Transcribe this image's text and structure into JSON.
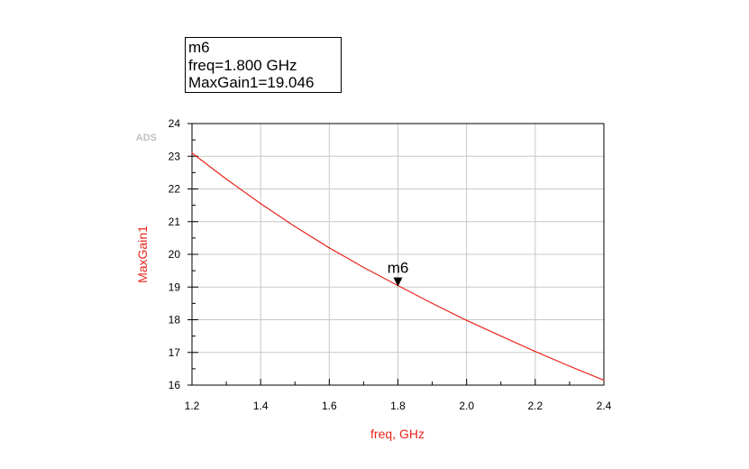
{
  "marker_readout": {
    "name": "m6",
    "line1": "freq=1.800 GHz",
    "line2": "MaxGain1=19.046"
  },
  "watermark": "ADS",
  "colors": {
    "trace": "#e8251c",
    "axis_label": "#e8251c",
    "grid": "#c8c8c8",
    "axis": "#000000"
  },
  "chart_data": {
    "type": "line",
    "xlabel": "freq, GHz",
    "ylabel": "MaxGain1",
    "xlim": [
      1.2,
      2.4
    ],
    "ylim": [
      16,
      24
    ],
    "x_ticks": [
      "1.2",
      "1.4",
      "1.6",
      "1.8",
      "2.0",
      "2.2",
      "2.4"
    ],
    "y_ticks": [
      "16",
      "17",
      "18",
      "19",
      "20",
      "21",
      "22",
      "23",
      "24"
    ],
    "grid": true,
    "series": [
      {
        "x": [
          1.2,
          1.3,
          1.4,
          1.5,
          1.6,
          1.7,
          1.8,
          1.9,
          2.0,
          2.1,
          2.2,
          2.3,
          2.4
        ],
        "values": [
          23.1,
          22.3,
          21.55,
          20.85,
          20.2,
          19.6,
          19.046,
          18.5,
          17.98,
          17.5,
          17.03,
          16.58,
          16.15
        ]
      }
    ],
    "markers": [
      {
        "label": "m6",
        "x": 1.8,
        "y": 19.046
      }
    ]
  }
}
